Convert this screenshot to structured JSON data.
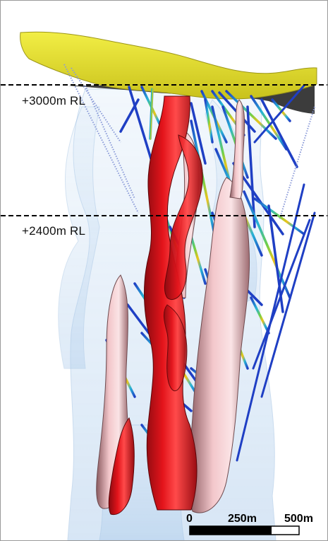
{
  "levels": [
    {
      "label": "+3000m  RL"
    },
    {
      "label": "+2400m  RL"
    }
  ],
  "scale_bar": {
    "labels": [
      "0",
      "250m",
      "500m"
    ]
  },
  "colors": {
    "surface": "#e6e22e",
    "surface_dark": "#3c3c3c",
    "envelope": "#b8d4ee",
    "red_body": "#e3141b",
    "pink_body": "#f0c0c5",
    "drill_blue": "#1f3fc4",
    "drill_cyan": "#27b3d6"
  }
}
